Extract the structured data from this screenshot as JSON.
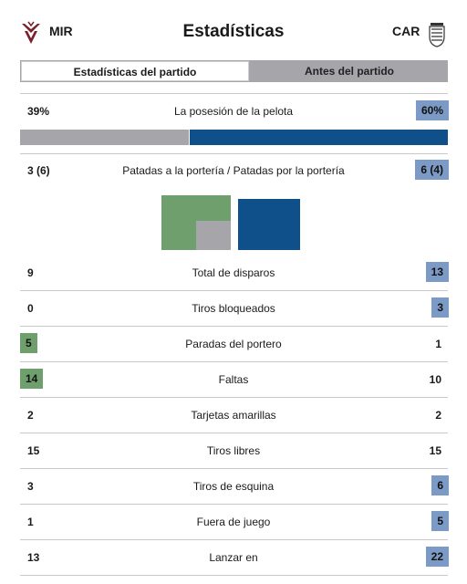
{
  "header": {
    "home_team": "MIR",
    "away_team": "CAR",
    "title": "Estadísticas"
  },
  "tabs": [
    {
      "label": "Estadísticas del partido",
      "active": true
    },
    {
      "label": "Antes del partido",
      "active": false
    }
  ],
  "colors": {
    "home_accent": "#6e9f6c",
    "away_accent": "#0f4f8a",
    "away_badge": "#7c9ac6",
    "neutral_bar": "#a6a6aa"
  },
  "possession": {
    "label": "La posesión de la pelota",
    "home": "39%",
    "away": "60%",
    "home_value": 39,
    "away_value": 60
  },
  "shots": {
    "label": "Patadas a la portería / Patadas por la portería",
    "home": "3 (6)",
    "away": "6 (4)"
  },
  "stats": [
    {
      "label": "Total de disparos",
      "home": "9",
      "away": "13",
      "highlight": "away"
    },
    {
      "label": "Tiros bloqueados",
      "home": "0",
      "away": "3",
      "highlight": "away"
    },
    {
      "label": "Paradas del portero",
      "home": "5",
      "away": "1",
      "highlight": "home"
    },
    {
      "label": "Faltas",
      "home": "14",
      "away": "10",
      "highlight": "home"
    },
    {
      "label": "Tarjetas amarillas",
      "home": "2",
      "away": "2",
      "highlight": "none"
    },
    {
      "label": "Tiros libres",
      "home": "15",
      "away": "15",
      "highlight": "none"
    },
    {
      "label": "Tiros de esquina",
      "home": "3",
      "away": "6",
      "highlight": "away"
    },
    {
      "label": "Fuera de juego",
      "home": "1",
      "away": "5",
      "highlight": "away"
    },
    {
      "label": "Lanzar en",
      "home": "13",
      "away": "22",
      "highlight": "away"
    }
  ]
}
